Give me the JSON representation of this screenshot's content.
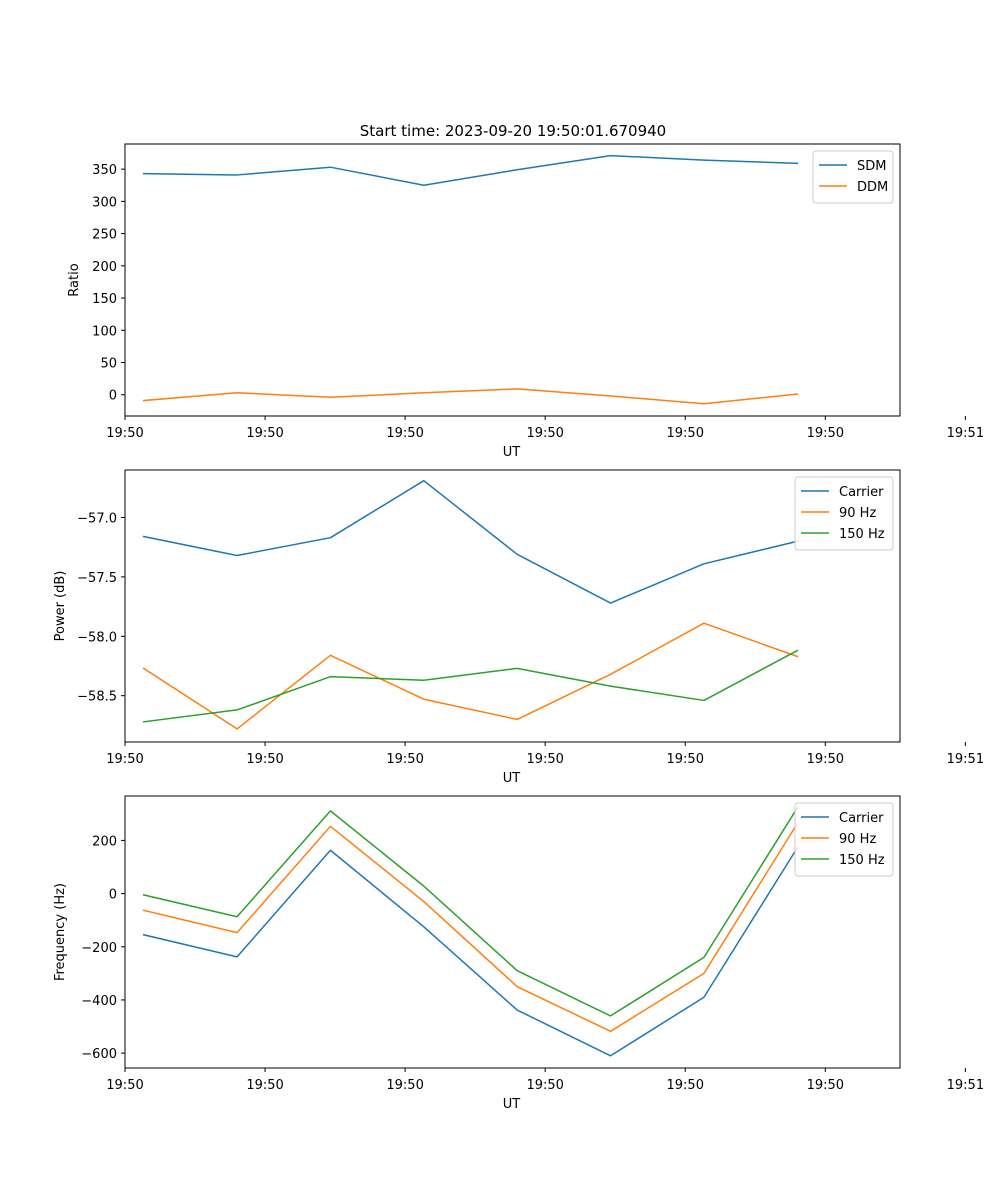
{
  "figure": {
    "title": "Start time: 2023-09-20 19:50:01.670940"
  },
  "chart_data": [
    {
      "type": "line",
      "xlabel": "UT",
      "ylabel": "Ratio",
      "x": [
        1,
        2,
        3,
        4,
        5,
        6,
        7,
        8
      ],
      "xlim": [
        0.8,
        9.1
      ],
      "xticks": [
        {
          "value": 0.8,
          "label": "19:50"
        },
        {
          "value": 2.3,
          "label": "19:50"
        },
        {
          "value": 3.8,
          "label": "19:50"
        },
        {
          "value": 5.3,
          "label": "19:50"
        },
        {
          "value": 6.8,
          "label": "19:50"
        },
        {
          "value": 8.3,
          "label": "19:50"
        },
        {
          "value": 9.8,
          "label": "19:51"
        }
      ],
      "ylim": [
        -33,
        389
      ],
      "yticks": [
        {
          "value": 0,
          "label": "0"
        },
        {
          "value": 50,
          "label": "50"
        },
        {
          "value": 100,
          "label": "100"
        },
        {
          "value": 150,
          "label": "150"
        },
        {
          "value": 200,
          "label": "200"
        },
        {
          "value": 250,
          "label": "250"
        },
        {
          "value": 300,
          "label": "300"
        },
        {
          "value": 350,
          "label": "350"
        }
      ],
      "legend_position": "top-right",
      "series": [
        {
          "name": "SDM",
          "color": "#1f77b4",
          "values": [
            343,
            341,
            353,
            325,
            349,
            371,
            364,
            359
          ]
        },
        {
          "name": "DDM",
          "color": "#ff7f0e",
          "values": [
            -9,
            3,
            -4,
            3,
            9,
            -2,
            -14,
            1
          ]
        }
      ]
    },
    {
      "type": "line",
      "xlabel": "UT",
      "ylabel": "Power (dB)",
      "x": [
        1,
        2,
        3,
        4,
        5,
        6,
        7,
        8
      ],
      "xlim": [
        0.8,
        9.1
      ],
      "xticks": [
        {
          "value": 0.8,
          "label": "19:50"
        },
        {
          "value": 2.3,
          "label": "19:50"
        },
        {
          "value": 3.8,
          "label": "19:50"
        },
        {
          "value": 5.3,
          "label": "19:50"
        },
        {
          "value": 6.8,
          "label": "19:50"
        },
        {
          "value": 8.3,
          "label": "19:50"
        },
        {
          "value": 9.8,
          "label": "19:51"
        }
      ],
      "ylim": [
        -58.89,
        -56.6
      ],
      "yticks": [
        {
          "value": -58.5,
          "label": "−58.5"
        },
        {
          "value": -58.0,
          "label": "−58.0"
        },
        {
          "value": -57.5,
          "label": "−57.5"
        },
        {
          "value": -57.0,
          "label": "−57.0"
        }
      ],
      "legend_position": "top-right",
      "series": [
        {
          "name": "Carrier",
          "color": "#1f77b4",
          "values": [
            -57.16,
            -57.32,
            -57.17,
            -56.69,
            -57.31,
            -57.72,
            -57.39,
            -57.2
          ]
        },
        {
          "name": "90 Hz",
          "color": "#ff7f0e",
          "values": [
            -58.27,
            -58.78,
            -58.16,
            -58.53,
            -58.7,
            -58.32,
            -57.89,
            -58.17
          ]
        },
        {
          "name": "150 Hz",
          "color": "#2ca02c",
          "values": [
            -58.72,
            -58.62,
            -58.34,
            -58.37,
            -58.27,
            -58.42,
            -58.54,
            -58.12
          ]
        }
      ]
    },
    {
      "type": "line",
      "xlabel": "UT",
      "ylabel": "Frequency (Hz)",
      "x": [
        1,
        2,
        3,
        4,
        5,
        6,
        7,
        8
      ],
      "xlim": [
        0.8,
        9.1
      ],
      "xticks": [
        {
          "value": 0.8,
          "label": "19:50"
        },
        {
          "value": 2.3,
          "label": "19:50"
        },
        {
          "value": 3.8,
          "label": "19:50"
        },
        {
          "value": 5.3,
          "label": "19:50"
        },
        {
          "value": 6.8,
          "label": "19:50"
        },
        {
          "value": 8.3,
          "label": "19:50"
        },
        {
          "value": 9.8,
          "label": "19:51"
        }
      ],
      "ylim": [
        -656,
        367
      ],
      "yticks": [
        {
          "value": -600,
          "label": "−600"
        },
        {
          "value": -400,
          "label": "−400"
        },
        {
          "value": -200,
          "label": "−200"
        },
        {
          "value": 0,
          "label": "0"
        },
        {
          "value": 200,
          "label": "200"
        }
      ],
      "legend_position": "top-right",
      "series": [
        {
          "name": "Carrier",
          "color": "#1f77b4",
          "values": [
            -155,
            -238,
            163,
            -125,
            -438,
            -610,
            -390,
            172
          ]
        },
        {
          "name": "90 Hz",
          "color": "#ff7f0e",
          "values": [
            -63,
            -147,
            253,
            -30,
            -350,
            -518,
            -300,
            263
          ]
        },
        {
          "name": "150 Hz",
          "color": "#2ca02c",
          "values": [
            -5,
            -87,
            311,
            28,
            -290,
            -460,
            -240,
            322
          ]
        }
      ]
    }
  ]
}
